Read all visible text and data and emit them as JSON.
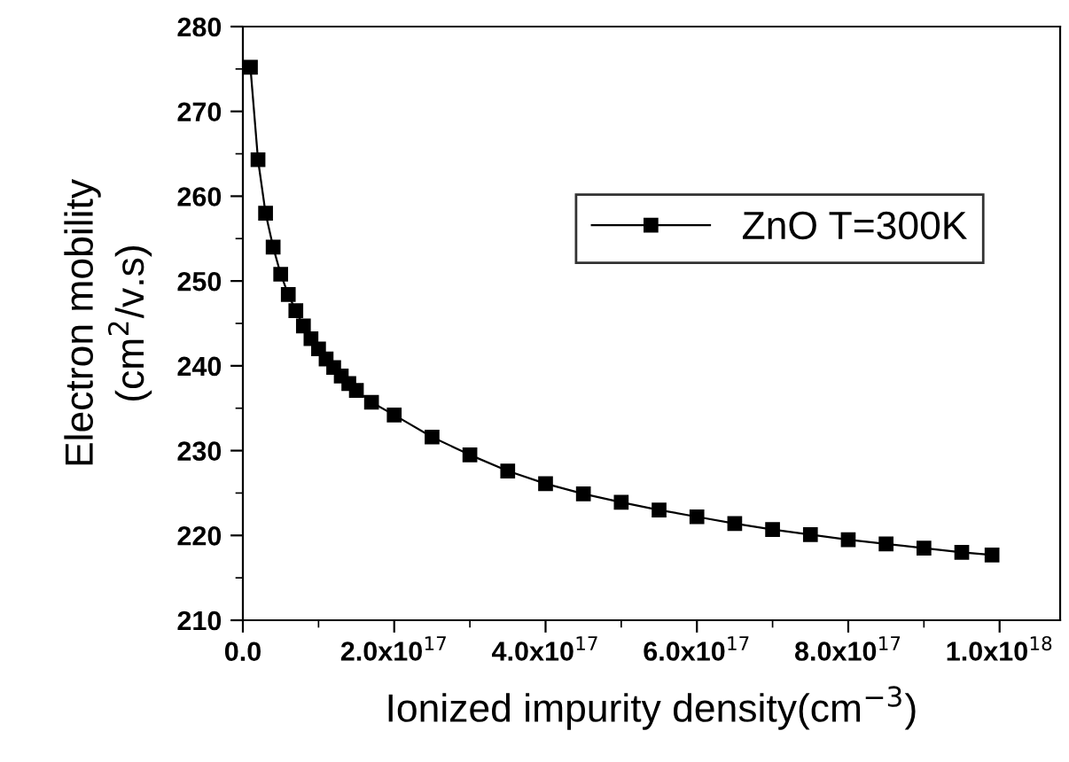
{
  "chart_data": {
    "type": "line",
    "xlabel": "Ionized impurity density(cm$^{−3}$)",
    "ylabel": "Electron mobility\n(cm$^{2}$/v.s)",
    "series": [
      {
        "name": "ZnO T=300K",
        "color": "#000000",
        "x": [
          1e+16,
          2e+16,
          3e+16,
          4e+16,
          5e+16,
          6e+16,
          7e+16,
          8e+16,
          9e+16,
          1e+17,
          1.1e+17,
          1.2e+17,
          1.3e+17,
          1.4e+17,
          1.5e+17,
          1.7e+17,
          2e+17,
          2.5e+17,
          3e+17,
          3.5e+17,
          4e+17,
          4.5e+17,
          5e+17,
          5.5e+17,
          6e+17,
          6.5e+17,
          7e+17,
          7.5e+17,
          8e+17,
          8.5e+17,
          9e+17,
          9.5e+17,
          9.9e+17
        ],
        "values": [
          275.2,
          264.3,
          258,
          254,
          250.8,
          248.4,
          246.5,
          244.7,
          243.2,
          242,
          240.8,
          239.8,
          238.8,
          237.9,
          237.1,
          235.7,
          234.2,
          231.6,
          229.5,
          227.6,
          226.1,
          224.9,
          223.9,
          223.0,
          222.2,
          221.4,
          220.7,
          220.1,
          219.5,
          219.0,
          218.5,
          218.0,
          217.7
        ]
      }
    ],
    "marker": "square",
    "line_style": "solid",
    "legend": "top right",
    "grid": false,
    "xlim": [
      0,
      1.08e+18
    ],
    "ylim": [
      210,
      280
    ],
    "xticks": [
      {
        "value": 0,
        "label": "0.0"
      },
      {
        "value": 2e+17,
        "label": "2.0x10$^{17}$"
      },
      {
        "value": 4e+17,
        "label": "4.0x10$^{17}$"
      },
      {
        "value": 6e+17,
        "label": "6.0x10$^{17}$"
      },
      {
        "value": 8e+17,
        "label": "8.0x10$^{17}$"
      },
      {
        "value": 1e+18,
        "label": "1.0x10$^{18}$"
      }
    ],
    "yticks": [
      210,
      220,
      230,
      240,
      250,
      260,
      270,
      280
    ]
  }
}
